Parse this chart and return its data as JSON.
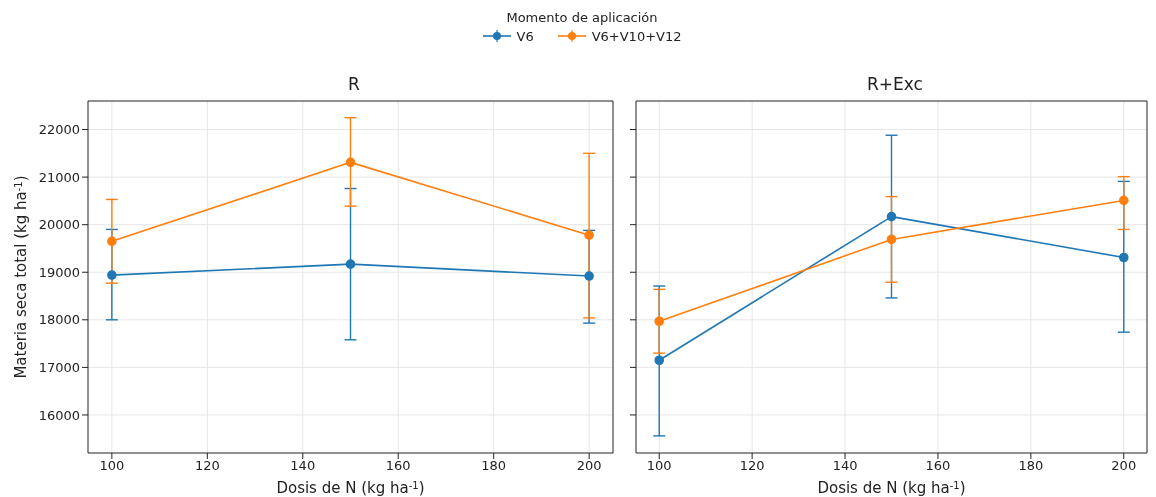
{
  "chart_data": [
    {
      "type": "line",
      "title": "R",
      "xlabel": "Dosis de N (kg ha$^{-1}$)",
      "ylabel": "Materia seca total (kg ha$^{-1}$)",
      "legend_title": "Momento de aplicación",
      "legend": "top",
      "grid": true,
      "marker": "circle",
      "line_style": "solid",
      "x": [
        100,
        150,
        200
      ],
      "xlim": [
        95,
        205
      ],
      "xticks": [
        100,
        120,
        140,
        160,
        180,
        200
      ],
      "ylim": [
        15200,
        22600
      ],
      "yticks": [
        16000,
        17000,
        18000,
        19000,
        20000,
        21000,
        22000
      ],
      "series": [
        {
          "name": "V6",
          "color": "#1f77b4",
          "values": [
            18940,
            19170,
            18920
          ],
          "errors": [
            [
              18000,
              19900
            ],
            [
              17580,
              20760
            ],
            [
              17930,
              19880
            ]
          ]
        },
        {
          "name": "V6+V10+V12",
          "color": "#ff7f0e",
          "values": [
            19650,
            21310,
            19780
          ],
          "errors": [
            [
              18770,
              20530
            ],
            [
              20390,
              22250
            ],
            [
              18040,
              21500
            ]
          ]
        }
      ]
    },
    {
      "type": "line",
      "title": "R+Exc",
      "xlabel": "Dosis de N (kg ha$^{-1}$)",
      "grid": true,
      "marker": "circle",
      "line_style": "solid",
      "tick_labels": "x",
      "x": [
        100,
        150,
        200
      ],
      "xlim": [
        95,
        205
      ],
      "xticks": [
        100,
        120,
        140,
        160,
        180,
        200
      ],
      "ylim": [
        15200,
        22600
      ],
      "yticks": [
        16000,
        17000,
        18000,
        19000,
        20000,
        21000,
        22000
      ],
      "series": [
        {
          "color": "#1f77b4",
          "values": [
            17150,
            20170,
            19310
          ],
          "errors": [
            [
              15560,
              18710
            ],
            [
              18460,
              21880
            ],
            [
              17740,
              20910
            ]
          ]
        },
        {
          "color": "#ff7f0e",
          "values": [
            17970,
            19690,
            20510
          ],
          "errors": [
            [
              17300,
              18640
            ],
            [
              18790,
              20590
            ],
            [
              19900,
              21010
            ]
          ]
        }
      ]
    }
  ]
}
